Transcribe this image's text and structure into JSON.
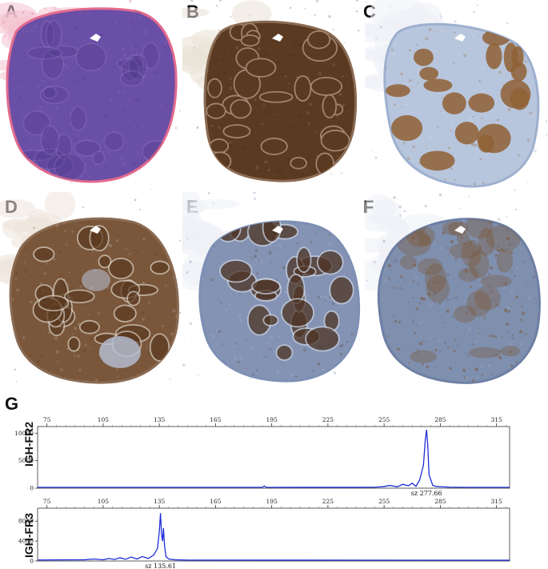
{
  "panels": [
    {
      "letter": "A",
      "stain": "hematoxylin-eosin",
      "colors": {
        "base": "#6a4fa6",
        "dark": "#53398e",
        "light": "#8b72bd",
        "rim": "#e36a8e",
        "bg": "#f4c3d1"
      }
    },
    {
      "letter": "B",
      "stain": "brown-diffuse",
      "colors": {
        "base": "#5b3a22",
        "dark": "#3e2513",
        "light": "#a08470",
        "rim": "#8a6a52",
        "bg": "#e9e1d6"
      }
    },
    {
      "letter": "C",
      "stain": "blue-with-brown-follicles",
      "colors": {
        "base": "#b8c6dd",
        "dark": "#8f6035",
        "light": "#d7deeb",
        "rim": "#9db0cf",
        "bg": "#eef1f6"
      }
    },
    {
      "letter": "D",
      "stain": "brown-partial",
      "colors": {
        "base": "#7a573a",
        "dark": "#5a3a20",
        "light": "#b9b7c0",
        "rim": "#8a6a52",
        "bg": "#ece4da"
      }
    },
    {
      "letter": "E",
      "stain": "blue-brown-follicles",
      "colors": {
        "base": "#8493b3",
        "dark": "#4e3525",
        "light": "#aab6cf",
        "rim": "#7d8fb3",
        "bg": "#eef1f6"
      }
    },
    {
      "letter": "F",
      "stain": "blue-brown-granular",
      "colors": {
        "base": "#7f8fae",
        "dark": "#7b5535",
        "light": "#a5b2cb",
        "rim": "#6d7fa4",
        "bg": "#eef1f6"
      }
    }
  ],
  "panel_g": {
    "letter": "G",
    "line_color": "#1f2fd6",
    "chart_data": [
      {
        "type": "line",
        "ylabel": "IGH-FR2",
        "x_ticks": [
          75,
          105,
          135,
          165,
          195,
          225,
          255,
          285,
          315
        ],
        "y_ticks": [
          0,
          5000,
          10000
        ],
        "xlim": [
          70,
          322
        ],
        "ylim": [
          0,
          11200
        ],
        "peak_annotation": "sz 277.66",
        "peaks": [
          {
            "x": 277.66,
            "y": 10600
          }
        ],
        "series": [
          {
            "x": [
              70,
              190,
              191,
              192,
              250,
              255,
              258,
              262,
              265,
              268,
              270,
              272,
              274,
              276,
              277,
              277.66,
              278.3,
              279,
              281,
              283,
              286,
              290,
              300,
              322
            ],
            "y": [
              150,
              150,
              400,
              150,
              160,
              300,
              500,
              250,
              700,
              450,
              900,
              350,
              1500,
              4200,
              8800,
              10600,
              7800,
              2400,
              500,
              300,
              250,
              180,
              150,
              150
            ]
          }
        ]
      },
      {
        "type": "line",
        "ylabel": "IGH-FR3",
        "x_ticks": [
          75,
          105,
          135,
          165,
          195,
          225,
          255,
          285,
          315
        ],
        "y_ticks": [
          0,
          4000,
          8000
        ],
        "xlim": [
          70,
          322
        ],
        "ylim": [
          0,
          10600
        ],
        "peak_annotation": "sz 135.61",
        "peaks": [
          {
            "x": 135.61,
            "y": 9600
          },
          {
            "x": 137.2,
            "y": 6600
          }
        ],
        "series": [
          {
            "x": [
              70,
              95,
              100,
              105,
              108,
              111,
              114,
              117,
              120,
              123,
              126,
              129,
              132,
              134,
              135,
              135.61,
              136.2,
              136.7,
              137.2,
              137.8,
              138.5,
              140,
              143,
              150,
              322
            ],
            "y": [
              200,
              250,
              400,
              250,
              500,
              300,
              650,
              350,
              800,
              400,
              900,
              500,
              1200,
              2500,
              6000,
              9600,
              5200,
              4000,
              6600,
              3000,
              900,
              400,
              250,
              180,
              150
            ]
          }
        ]
      }
    ]
  }
}
